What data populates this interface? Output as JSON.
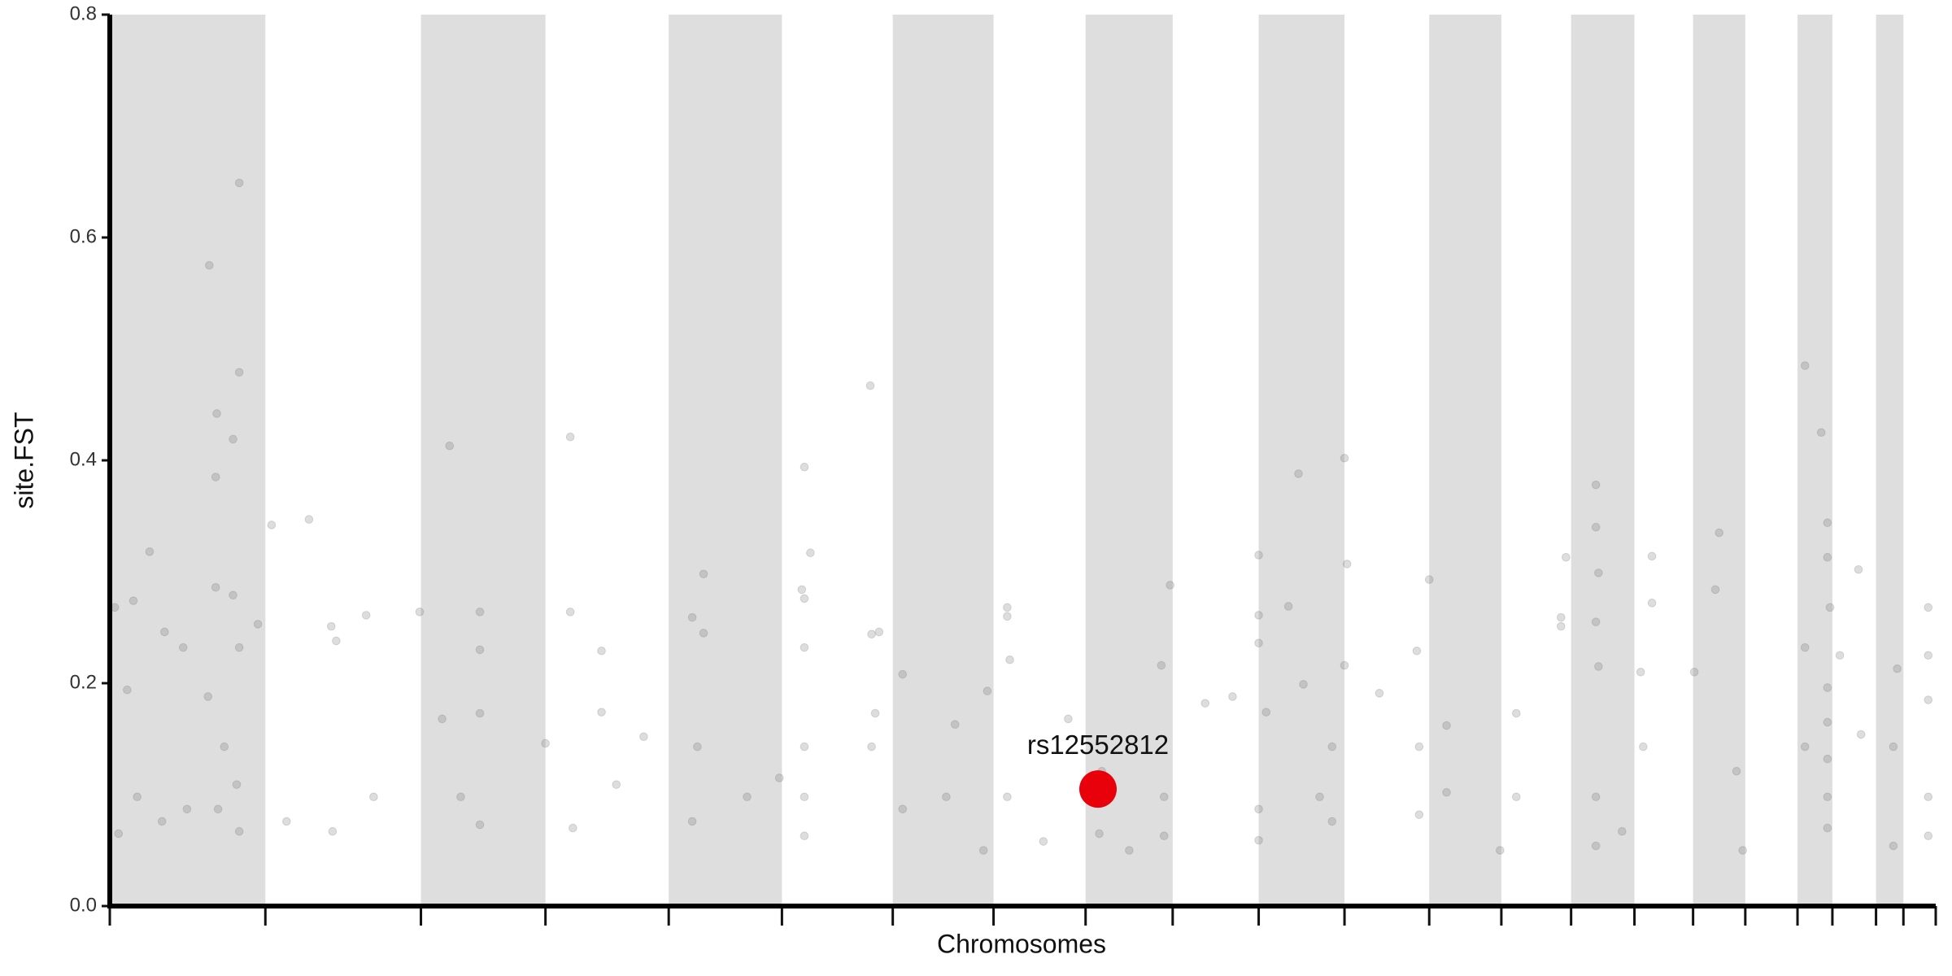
{
  "chart_data": {
    "type": "scatter",
    "x_label": "Chromosomes",
    "y_label": "site.FST",
    "xlim": [
      0,
      100
    ],
    "xticks": [
      0,
      8.52,
      17.04,
      23.86,
      30.61,
      36.81,
      42.88,
      48.4,
      53.44,
      58.21,
      62.92,
      67.62,
      72.26,
      76.21,
      80.03,
      83.5,
      86.71,
      89.57,
      92.43,
      94.34,
      96.73,
      98.23,
      100
    ],
    "ylim": [
      0,
      0.8
    ],
    "yticks": [
      {
        "value": 0,
        "label": "0.0"
      },
      0.2,
      0.4,
      0.6,
      0.8
    ],
    "alternate_shading": true,
    "shade_color": "#dedede",
    "color": "#666666",
    "opacity": 0.22,
    "x": [
      5.45,
      7.09,
      7.09,
      5.86,
      6.75,
      5.8,
      5.8,
      6.75,
      2.18,
      0.27,
      1.29,
      0.95,
      3.0,
      4.02,
      8.11,
      7.09,
      5.38,
      6.27,
      6.95,
      5.93,
      7.09,
      1.5,
      2.86,
      0.48,
      4.23,
      8.86,
      10.91,
      12.13,
      12.4,
      14.04,
      12.2,
      14.45,
      9.68,
      16.97,
      18.61,
      20.27,
      20.27,
      20.27,
      18.2,
      19.22,
      20.27,
      23.86,
      25.22,
      25.22,
      26.93,
      26.93,
      25.36,
      27.74,
      29.24,
      32.52,
      31.9,
      32.52,
      32.18,
      31.9,
      34.9,
      38.04,
      38.37,
      37.9,
      38.04,
      38.04,
      38.04,
      38.04,
      38.04,
      36.67,
      41.65,
      41.72,
      42.13,
      41.92,
      41.72,
      43.42,
      43.42,
      45.81,
      47.85,
      46.29,
      48.06,
      49.15,
      49.15,
      49.29,
      49.15,
      52.49,
      51.13,
      54.33,
      54.19,
      55.83,
      57.74,
      58.07,
      57.59,
      57.74,
      59.99,
      61.49,
      62.92,
      62.92,
      62.92,
      63.33,
      62.92,
      62.92,
      64.55,
      65.1,
      65.37,
      67.62,
      67.76,
      67.62,
      66.94,
      66.94,
      66.26,
      69.53,
      71.58,
      71.71,
      71.71,
      72.26,
      73.21,
      73.21,
      76.14,
      77.03,
      77.03,
      79.48,
      79.48,
      79.75,
      81.39,
      81.39,
      81.53,
      81.39,
      81.53,
      81.39,
      81.39,
      82.82,
      84.46,
      84.46,
      83.84,
      83.98,
      86.78,
      87.93,
      88.14,
      89.09,
      89.43,
      92.84,
      93.73,
      94.07,
      94.07,
      94.21,
      94.07,
      94.07,
      94.07,
      94.07,
      94.07,
      92.84,
      92.84,
      95.77,
      94.75,
      95.91,
      97.89,
      97.68,
      97.68,
      99.59,
      99.59,
      99.59,
      99.59,
      99.59
    ],
    "values": [
      0.575,
      0.649,
      0.479,
      0.442,
      0.419,
      0.385,
      0.286,
      0.279,
      0.318,
      0.268,
      0.274,
      0.194,
      0.246,
      0.232,
      0.253,
      0.232,
      0.188,
      0.143,
      0.109,
      0.087,
      0.067,
      0.098,
      0.076,
      0.065,
      0.087,
      0.342,
      0.347,
      0.251,
      0.238,
      0.261,
      0.067,
      0.098,
      0.076,
      0.264,
      0.413,
      0.264,
      0.23,
      0.173,
      0.168,
      0.098,
      0.073,
      0.146,
      0.421,
      0.264,
      0.229,
      0.174,
      0.07,
      0.109,
      0.152,
      0.298,
      0.259,
      0.245,
      0.143,
      0.076,
      0.098,
      0.394,
      0.317,
      0.284,
      0.276,
      0.232,
      0.143,
      0.098,
      0.063,
      0.115,
      0.467,
      0.244,
      0.246,
      0.173,
      0.143,
      0.208,
      0.087,
      0.098,
      0.05,
      0.163,
      0.193,
      0.268,
      0.26,
      0.221,
      0.098,
      0.168,
      0.058,
      0.121,
      0.065,
      0.05,
      0.063,
      0.288,
      0.216,
      0.098,
      0.182,
      0.188,
      0.315,
      0.261,
      0.236,
      0.174,
      0.087,
      0.059,
      0.269,
      0.388,
      0.199,
      0.402,
      0.307,
      0.216,
      0.143,
      0.076,
      0.098,
      0.191,
      0.229,
      0.143,
      0.082,
      0.293,
      0.162,
      0.102,
      0.05,
      0.173,
      0.098,
      0.259,
      0.251,
      0.313,
      0.378,
      0.34,
      0.299,
      0.255,
      0.215,
      0.098,
      0.054,
      0.067,
      0.314,
      0.272,
      0.21,
      0.143,
      0.21,
      0.284,
      0.335,
      0.121,
      0.05,
      0.485,
      0.425,
      0.344,
      0.313,
      0.268,
      0.196,
      0.165,
      0.132,
      0.098,
      0.07,
      0.232,
      0.143,
      0.302,
      0.225,
      0.154,
      0.213,
      0.143,
      0.054,
      0.268,
      0.225,
      0.185,
      0.098,
      0.063
    ],
    "highlight": {
      "label": "rs12552812",
      "x": 54.12,
      "y": 0.105,
      "color": "#e8000b"
    }
  }
}
